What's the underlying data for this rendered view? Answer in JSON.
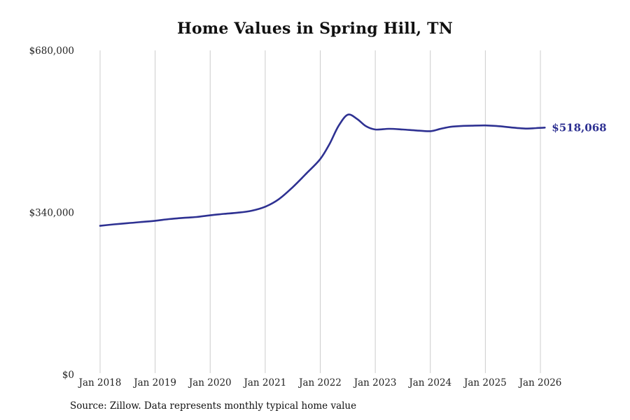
{
  "title": "Home Values in Spring Hill, TN",
  "source_note": "Source: Zillow. Data represents monthly typical home value",
  "chart_data": {
    "type": "line",
    "title": "Home Values in Spring Hill, TN",
    "xlabel": "",
    "ylabel": "",
    "ylim": [
      0,
      680000
    ],
    "xlim": [
      2018,
      2026.15
    ],
    "grid": "vertical-only",
    "legend": "none",
    "line_color": "#2e3192",
    "grid_color": "#cccccc",
    "tick_label_color": "#222222",
    "end_label": "$518,068",
    "end_value": 518068,
    "y_ticks": [
      {
        "label": "$0",
        "value": 0
      },
      {
        "label": "$340,000",
        "value": 340000
      },
      {
        "label": "$680,000",
        "value": 680000
      }
    ],
    "x_ticks": [
      {
        "label": "Jan 2018",
        "value": 2018
      },
      {
        "label": "Jan 2019",
        "value": 2019
      },
      {
        "label": "Jan 2020",
        "value": 2020
      },
      {
        "label": "Jan 2021",
        "value": 2021
      },
      {
        "label": "Jan 2022",
        "value": 2022
      },
      {
        "label": "Jan 2023",
        "value": 2023
      },
      {
        "label": "Jan 2024",
        "value": 2024
      },
      {
        "label": "Jan 2025",
        "value": 2025
      },
      {
        "label": "Jan 2026",
        "value": 2026
      }
    ],
    "series": [
      {
        "name": "Monthly typical home value",
        "color": "#2e3192",
        "points": [
          [
            2018.0,
            312000
          ],
          [
            2018.25,
            315000
          ],
          [
            2018.5,
            317500
          ],
          [
            2018.75,
            320000
          ],
          [
            2019.0,
            322500
          ],
          [
            2019.25,
            326000
          ],
          [
            2019.5,
            328500
          ],
          [
            2019.75,
            330500
          ],
          [
            2020.0,
            334000
          ],
          [
            2020.25,
            337000
          ],
          [
            2020.5,
            339500
          ],
          [
            2020.75,
            343500
          ],
          [
            2021.0,
            352000
          ],
          [
            2021.25,
            368000
          ],
          [
            2021.5,
            393000
          ],
          [
            2021.75,
            422000
          ],
          [
            2022.0,
            452000
          ],
          [
            2022.17,
            484000
          ],
          [
            2022.33,
            521000
          ],
          [
            2022.5,
            545000
          ],
          [
            2022.67,
            536000
          ],
          [
            2022.83,
            521000
          ],
          [
            2023.0,
            514000
          ],
          [
            2023.25,
            515500
          ],
          [
            2023.5,
            514000
          ],
          [
            2023.75,
            512000
          ],
          [
            2024.0,
            510500
          ],
          [
            2024.17,
            515000
          ],
          [
            2024.33,
            519000
          ],
          [
            2024.5,
            521000
          ],
          [
            2024.75,
            522000
          ],
          [
            2025.0,
            522500
          ],
          [
            2025.25,
            521000
          ],
          [
            2025.5,
            518000
          ],
          [
            2025.75,
            516000
          ],
          [
            2025.92,
            517000
          ],
          [
            2026.08,
            518068
          ]
        ]
      }
    ]
  }
}
